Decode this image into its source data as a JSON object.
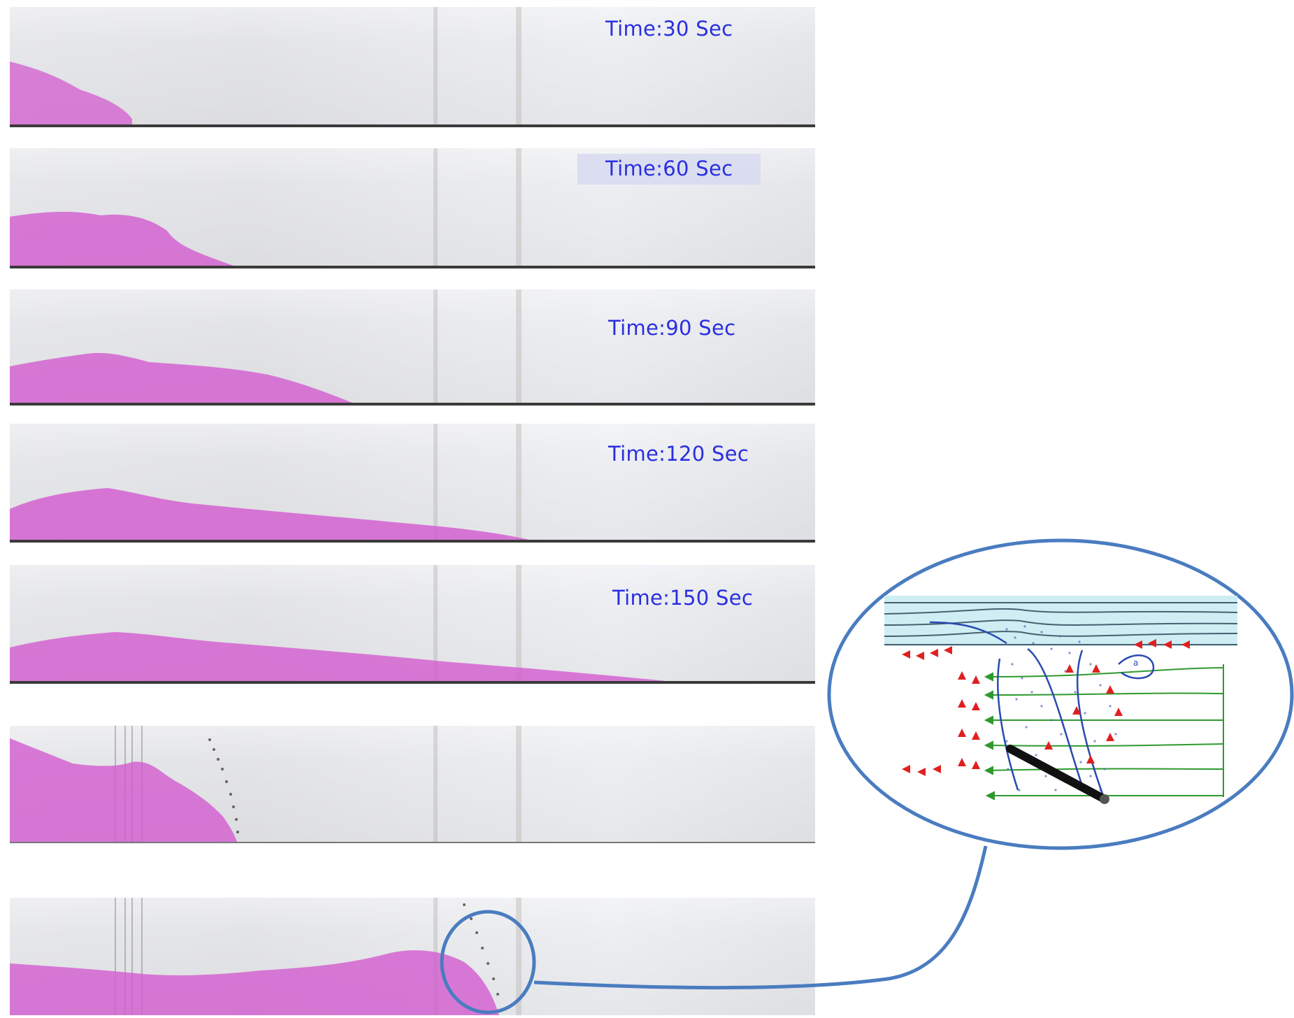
{
  "panels": [
    {
      "label": "Time:30 Sec"
    },
    {
      "label": "Time:60 Sec"
    },
    {
      "label": "Time:90 Sec"
    },
    {
      "label": "Time:120 Sec"
    },
    {
      "label": "Time:150 Sec"
    },
    {
      "label": ""
    },
    {
      "label": ""
    }
  ],
  "colors": {
    "dye": "#d35bcf",
    "label_text": "#2a2ee0",
    "callout_stroke": "#4a7cc0",
    "arrow_red": "#e02020",
    "arrow_green": "#2e9a2e",
    "streamline_blue": "#2a4ab0"
  },
  "callout": {
    "inset_label": "a"
  }
}
